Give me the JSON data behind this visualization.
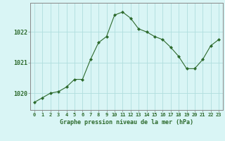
{
  "x": [
    0,
    1,
    2,
    3,
    4,
    5,
    6,
    7,
    8,
    9,
    10,
    11,
    12,
    13,
    14,
    15,
    16,
    17,
    18,
    19,
    20,
    21,
    22,
    23
  ],
  "y": [
    1019.7,
    1019.85,
    1020.0,
    1020.05,
    1020.2,
    1020.45,
    1020.45,
    1021.1,
    1021.65,
    1021.85,
    1022.55,
    1022.65,
    1022.45,
    1022.1,
    1022.0,
    1021.85,
    1021.75,
    1021.5,
    1021.2,
    1020.8,
    1020.8,
    1021.1,
    1021.55,
    1021.75
  ],
  "line_color": "#2d6a2d",
  "marker_color": "#2d6a2d",
  "bg_color": "#d9f5f5",
  "grid_color": "#b0dede",
  "axis_color": "#888888",
  "title": "Graphe pression niveau de la mer (hPa)",
  "xlabel_ticks": [
    "0",
    "1",
    "2",
    "3",
    "4",
    "5",
    "6",
    "7",
    "8",
    "9",
    "10",
    "11",
    "12",
    "13",
    "14",
    "15",
    "16",
    "17",
    "18",
    "19",
    "20",
    "21",
    "22",
    "23"
  ],
  "ytick_labels": [
    "1020",
    "1021",
    "1022"
  ],
  "ytick_values": [
    1020,
    1021,
    1022
  ],
  "ylim": [
    1019.45,
    1022.95
  ],
  "xlim": [
    -0.5,
    23.5
  ]
}
